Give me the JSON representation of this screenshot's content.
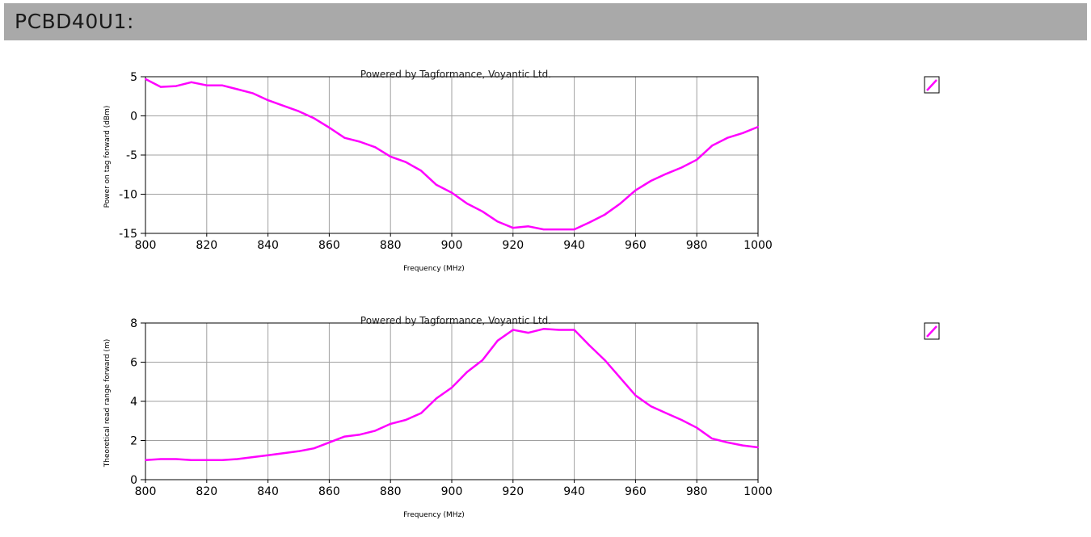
{
  "page": {
    "title": "PCBD40U1:"
  },
  "colors": {
    "header_bg": "#a9a9a9",
    "series": "#ff00ff",
    "grid": "#a0a0a0"
  },
  "chart_data": [
    {
      "type": "line",
      "title": "Powered by Tagformance, Voyantic Ltd.",
      "xlabel": "Frequency (MHz)",
      "ylabel": "Power on tag forward (dBm)",
      "xlim": [
        800,
        1000
      ],
      "ylim": [
        -15,
        5
      ],
      "xticks": [
        800,
        820,
        840,
        860,
        880,
        900,
        920,
        940,
        960,
        980,
        1000
      ],
      "yticks": [
        5,
        0,
        -5,
        -10,
        -15
      ],
      "grid": true,
      "legend": "right, icon only",
      "x": [
        800,
        805,
        810,
        815,
        820,
        825,
        830,
        835,
        840,
        845,
        850,
        855,
        860,
        865,
        870,
        875,
        880,
        885,
        890,
        895,
        900,
        905,
        910,
        915,
        920,
        925,
        930,
        935,
        940,
        945,
        950,
        955,
        960,
        965,
        970,
        975,
        980,
        985,
        990,
        995,
        1000
      ],
      "series": [
        {
          "values": [
            4.7,
            3.7,
            3.8,
            4.3,
            3.9,
            3.9,
            3.4,
            2.9,
            2.0,
            1.3,
            0.6,
            -0.3,
            -1.5,
            -2.8,
            -3.3,
            -4.0,
            -5.2,
            -5.9,
            -7.0,
            -8.8,
            -9.8,
            -11.2,
            -12.2,
            -13.5,
            -14.3,
            -14.1,
            -14.5,
            -14.5,
            -14.5,
            -13.6,
            -12.6,
            -11.2,
            -9.5,
            -8.3,
            -7.4,
            -6.6,
            -5.6,
            -3.8,
            -2.8,
            -2.2,
            -1.4
          ]
        }
      ]
    },
    {
      "type": "line",
      "title": "Powered by Tagformance, Voyantic Ltd.",
      "xlabel": "Frequency (MHz)",
      "ylabel": "Theoretical read range forward (m)",
      "xlim": [
        800,
        1000
      ],
      "ylim": [
        0,
        8
      ],
      "xticks": [
        800,
        820,
        840,
        860,
        880,
        900,
        920,
        940,
        960,
        980,
        1000
      ],
      "yticks": [
        8,
        6,
        4,
        2,
        0
      ],
      "grid": true,
      "legend": "right, icon only",
      "x": [
        800,
        805,
        810,
        815,
        820,
        825,
        830,
        835,
        840,
        845,
        850,
        855,
        860,
        865,
        870,
        875,
        880,
        885,
        890,
        895,
        900,
        905,
        910,
        915,
        920,
        925,
        930,
        935,
        940,
        945,
        950,
        955,
        960,
        965,
        970,
        975,
        980,
        985,
        990,
        995,
        1000
      ],
      "series": [
        {
          "values": [
            1.0,
            1.05,
            1.05,
            1.0,
            1.0,
            1.0,
            1.05,
            1.15,
            1.25,
            1.35,
            1.45,
            1.6,
            1.9,
            2.2,
            2.3,
            2.5,
            2.85,
            3.05,
            3.4,
            4.15,
            4.7,
            5.5,
            6.1,
            7.1,
            7.65,
            7.5,
            7.7,
            7.65,
            7.65,
            6.85,
            6.1,
            5.2,
            4.3,
            3.75,
            3.4,
            3.05,
            2.65,
            2.1,
            1.9,
            1.75,
            1.65
          ]
        }
      ]
    }
  ]
}
